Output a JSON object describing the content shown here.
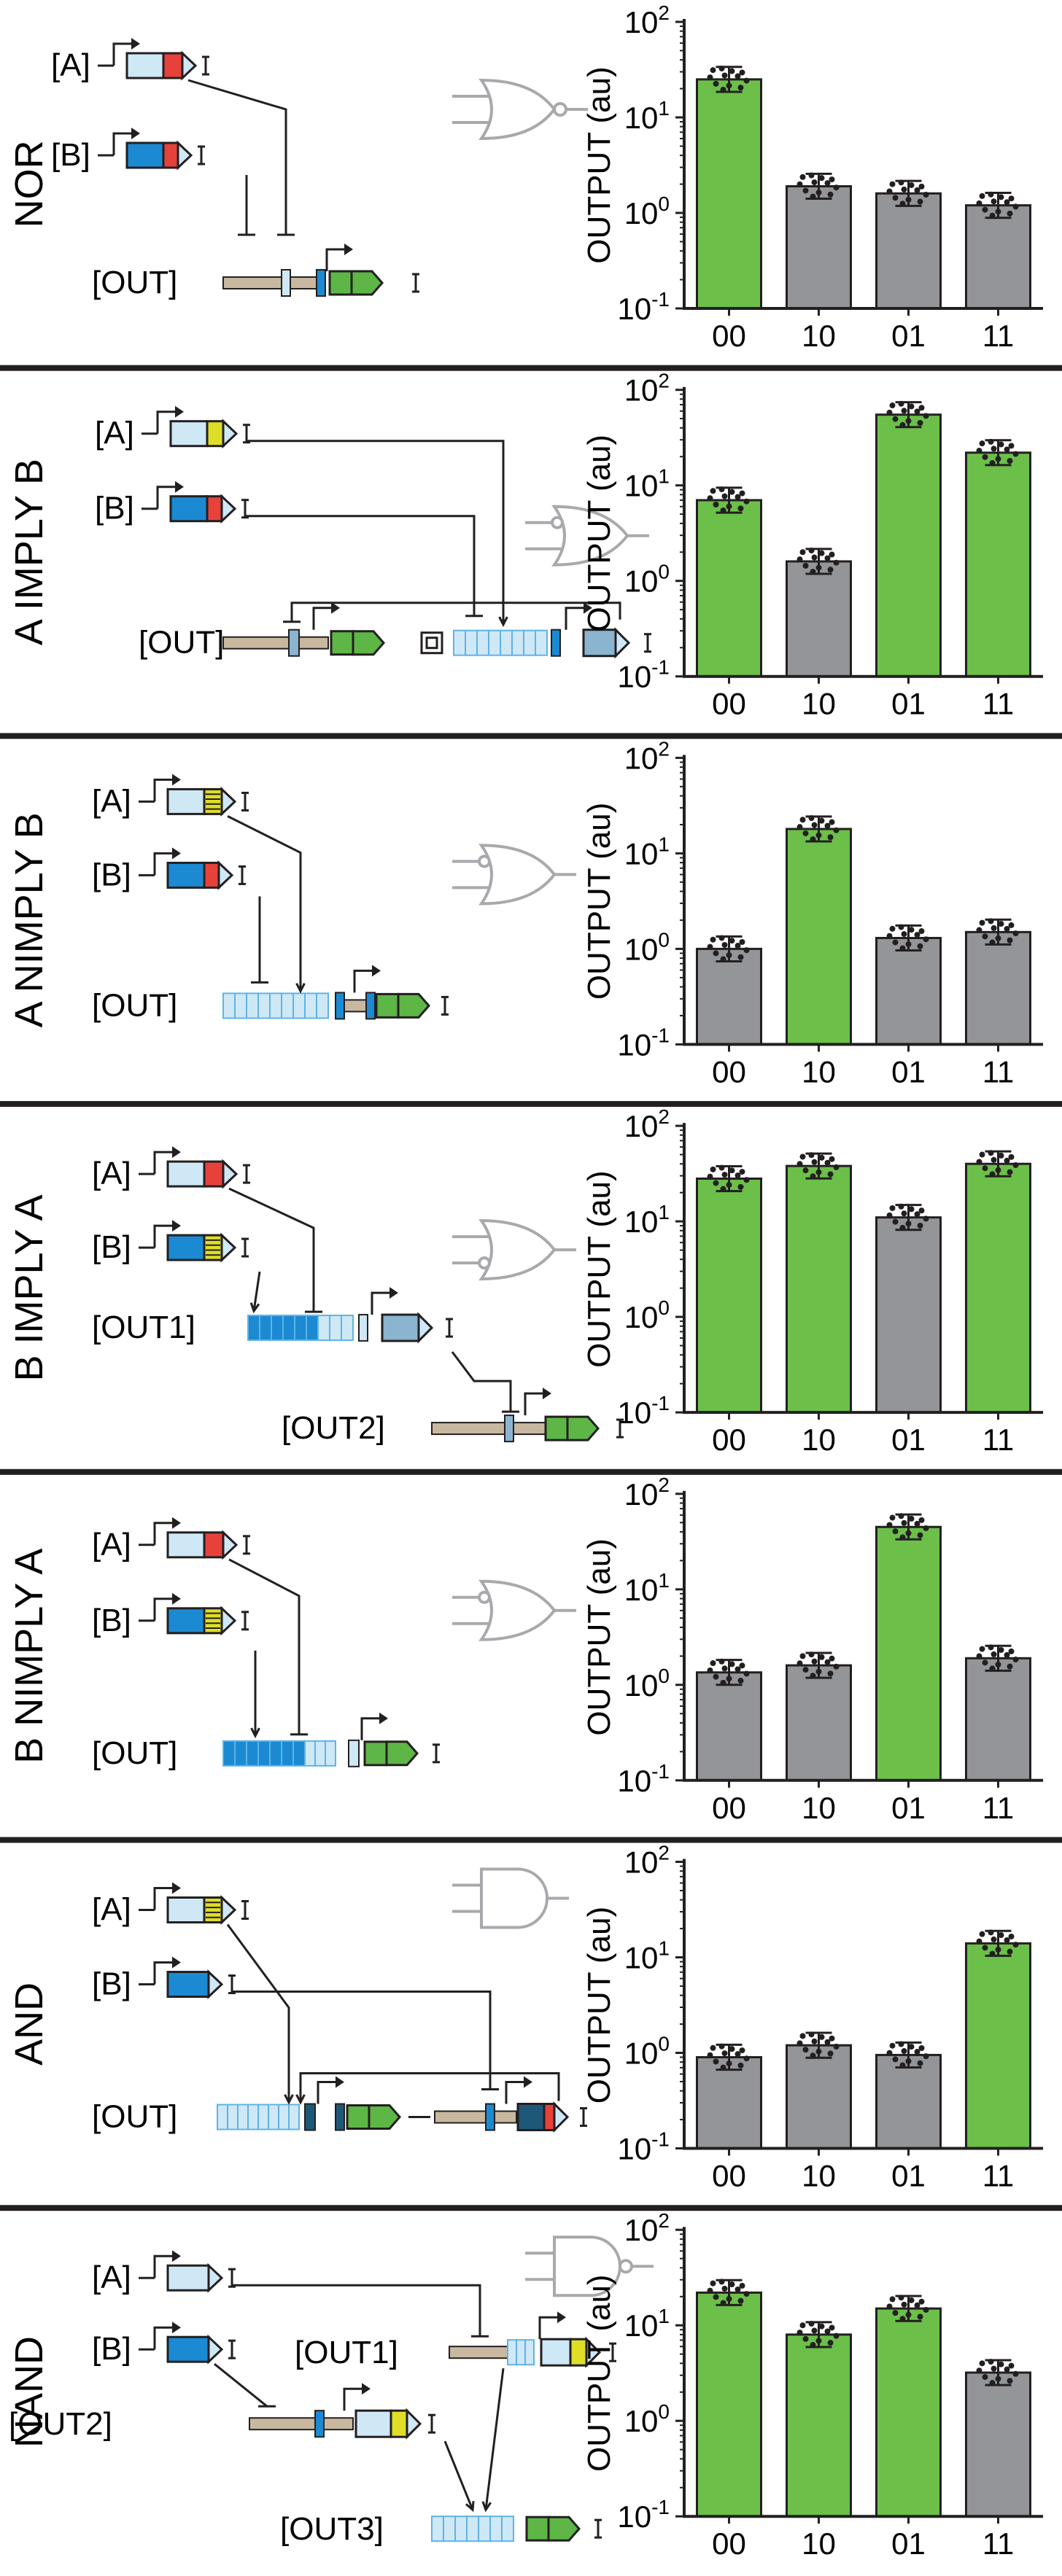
{
  "figure_title": "Genetic logic gate circuits",
  "colors": {
    "on": "#6cc04a",
    "off": "#939598",
    "gate": "#a7a9ac",
    "promoter_dark": "#231f20",
    "light_blue": "#cfe8f6",
    "mid_blue": "#1b8ad2",
    "steel_blue": "#8ab4cf",
    "dark_navy": "#1e5878",
    "red": "#e6423b",
    "yellow": "#dede27",
    "green": "#5db646",
    "tan": "#c9b8a0"
  },
  "axis": {
    "ylabel": "OUTPUT (au)",
    "ticks": [
      {
        "base": "10",
        "exp": "2"
      },
      {
        "base": "10",
        "exp": "1"
      },
      {
        "base": "10",
        "exp": "0"
      },
      {
        "base": "10",
        "exp": "-1"
      }
    ],
    "categories": [
      "00",
      "10",
      "01",
      "11"
    ]
  },
  "panels": [
    {
      "name": "NOR",
      "gate_symbol": "NOR",
      "labels": {
        "a": "[A]",
        "b": "[B]",
        "out": "[OUT]"
      },
      "chart_data": {
        "type": "bar",
        "title": "NOR",
        "ylabel": "OUTPUT (au)",
        "yscale": "log",
        "ylim": [
          0.1,
          100
        ],
        "categories": [
          "00",
          "10",
          "01",
          "11"
        ],
        "values": [
          25,
          1.9,
          1.6,
          1.2
        ],
        "states": [
          "on",
          "off",
          "off",
          "off"
        ]
      }
    },
    {
      "name": "A IMPLY B",
      "gate_symbol": "IMPLY",
      "labels": {
        "a": "[A]",
        "b": "[B]",
        "out": "[OUT]"
      },
      "chart_data": {
        "type": "bar",
        "title": "A IMPLY B",
        "ylabel": "OUTPUT (au)",
        "yscale": "log",
        "ylim": [
          0.1,
          100
        ],
        "categories": [
          "00",
          "10",
          "01",
          "11"
        ],
        "values": [
          7,
          1.6,
          55,
          22
        ],
        "states": [
          "on",
          "off",
          "on",
          "on"
        ]
      }
    },
    {
      "name": "A NIMPLY B",
      "gate_symbol": "NIMPLY",
      "labels": {
        "a": "[A]",
        "b": "[B]",
        "out": "[OUT]"
      },
      "chart_data": {
        "type": "bar",
        "title": "A NIMPLY B",
        "ylabel": "OUTPUT (au)",
        "yscale": "log",
        "ylim": [
          0.1,
          100
        ],
        "categories": [
          "00",
          "10",
          "01",
          "11"
        ],
        "values": [
          1.0,
          18,
          1.3,
          1.5
        ],
        "states": [
          "off",
          "on",
          "off",
          "off"
        ]
      }
    },
    {
      "name": "B IMPLY A",
      "gate_symbol": "IMPLY_B",
      "labels": {
        "a": "[A]",
        "b": "[B]",
        "out1": "[OUT1]",
        "out2": "[OUT2]"
      },
      "chart_data": {
        "type": "bar",
        "title": "B IMPLY A",
        "ylabel": "OUTPUT (au)",
        "yscale": "log",
        "ylim": [
          0.1,
          100
        ],
        "categories": [
          "00",
          "10",
          "01",
          "11"
        ],
        "values": [
          28,
          38,
          11,
          40
        ],
        "states": [
          "on",
          "on",
          "off",
          "on"
        ]
      }
    },
    {
      "name": "B NIMPLY A",
      "gate_symbol": "NIMPLY_B",
      "labels": {
        "a": "[A]",
        "b": "[B]",
        "out": "[OUT]"
      },
      "chart_data": {
        "type": "bar",
        "title": "B NIMPLY A",
        "ylabel": "OUTPUT (au)",
        "yscale": "log",
        "ylim": [
          0.1,
          100
        ],
        "categories": [
          "00",
          "10",
          "01",
          "11"
        ],
        "values": [
          1.35,
          1.6,
          45,
          1.9
        ],
        "states": [
          "off",
          "off",
          "on",
          "off"
        ]
      }
    },
    {
      "name": "AND",
      "gate_symbol": "AND",
      "labels": {
        "a": "[A]",
        "b": "[B]",
        "out": "[OUT]"
      },
      "chart_data": {
        "type": "bar",
        "title": "AND",
        "ylabel": "OUTPUT (au)",
        "yscale": "log",
        "ylim": [
          0.1,
          100
        ],
        "categories": [
          "00",
          "10",
          "01",
          "11"
        ],
        "values": [
          0.9,
          1.2,
          0.95,
          14
        ],
        "states": [
          "off",
          "off",
          "off",
          "on"
        ]
      }
    },
    {
      "name": "NAND",
      "gate_symbol": "NAND",
      "labels": {
        "a": "[A]",
        "b": "[B]",
        "out1": "[OUT1]",
        "out2": "[OUT2]",
        "out3": "[OUT3]"
      },
      "chart_data": {
        "type": "bar",
        "title": "NAND",
        "ylabel": "OUTPUT (au)",
        "yscale": "log",
        "ylim": [
          0.1,
          100
        ],
        "categories": [
          "00",
          "10",
          "01",
          "11"
        ],
        "values": [
          22,
          8,
          15,
          3.2
        ],
        "states": [
          "on",
          "on",
          "on",
          "off"
        ]
      }
    }
  ]
}
